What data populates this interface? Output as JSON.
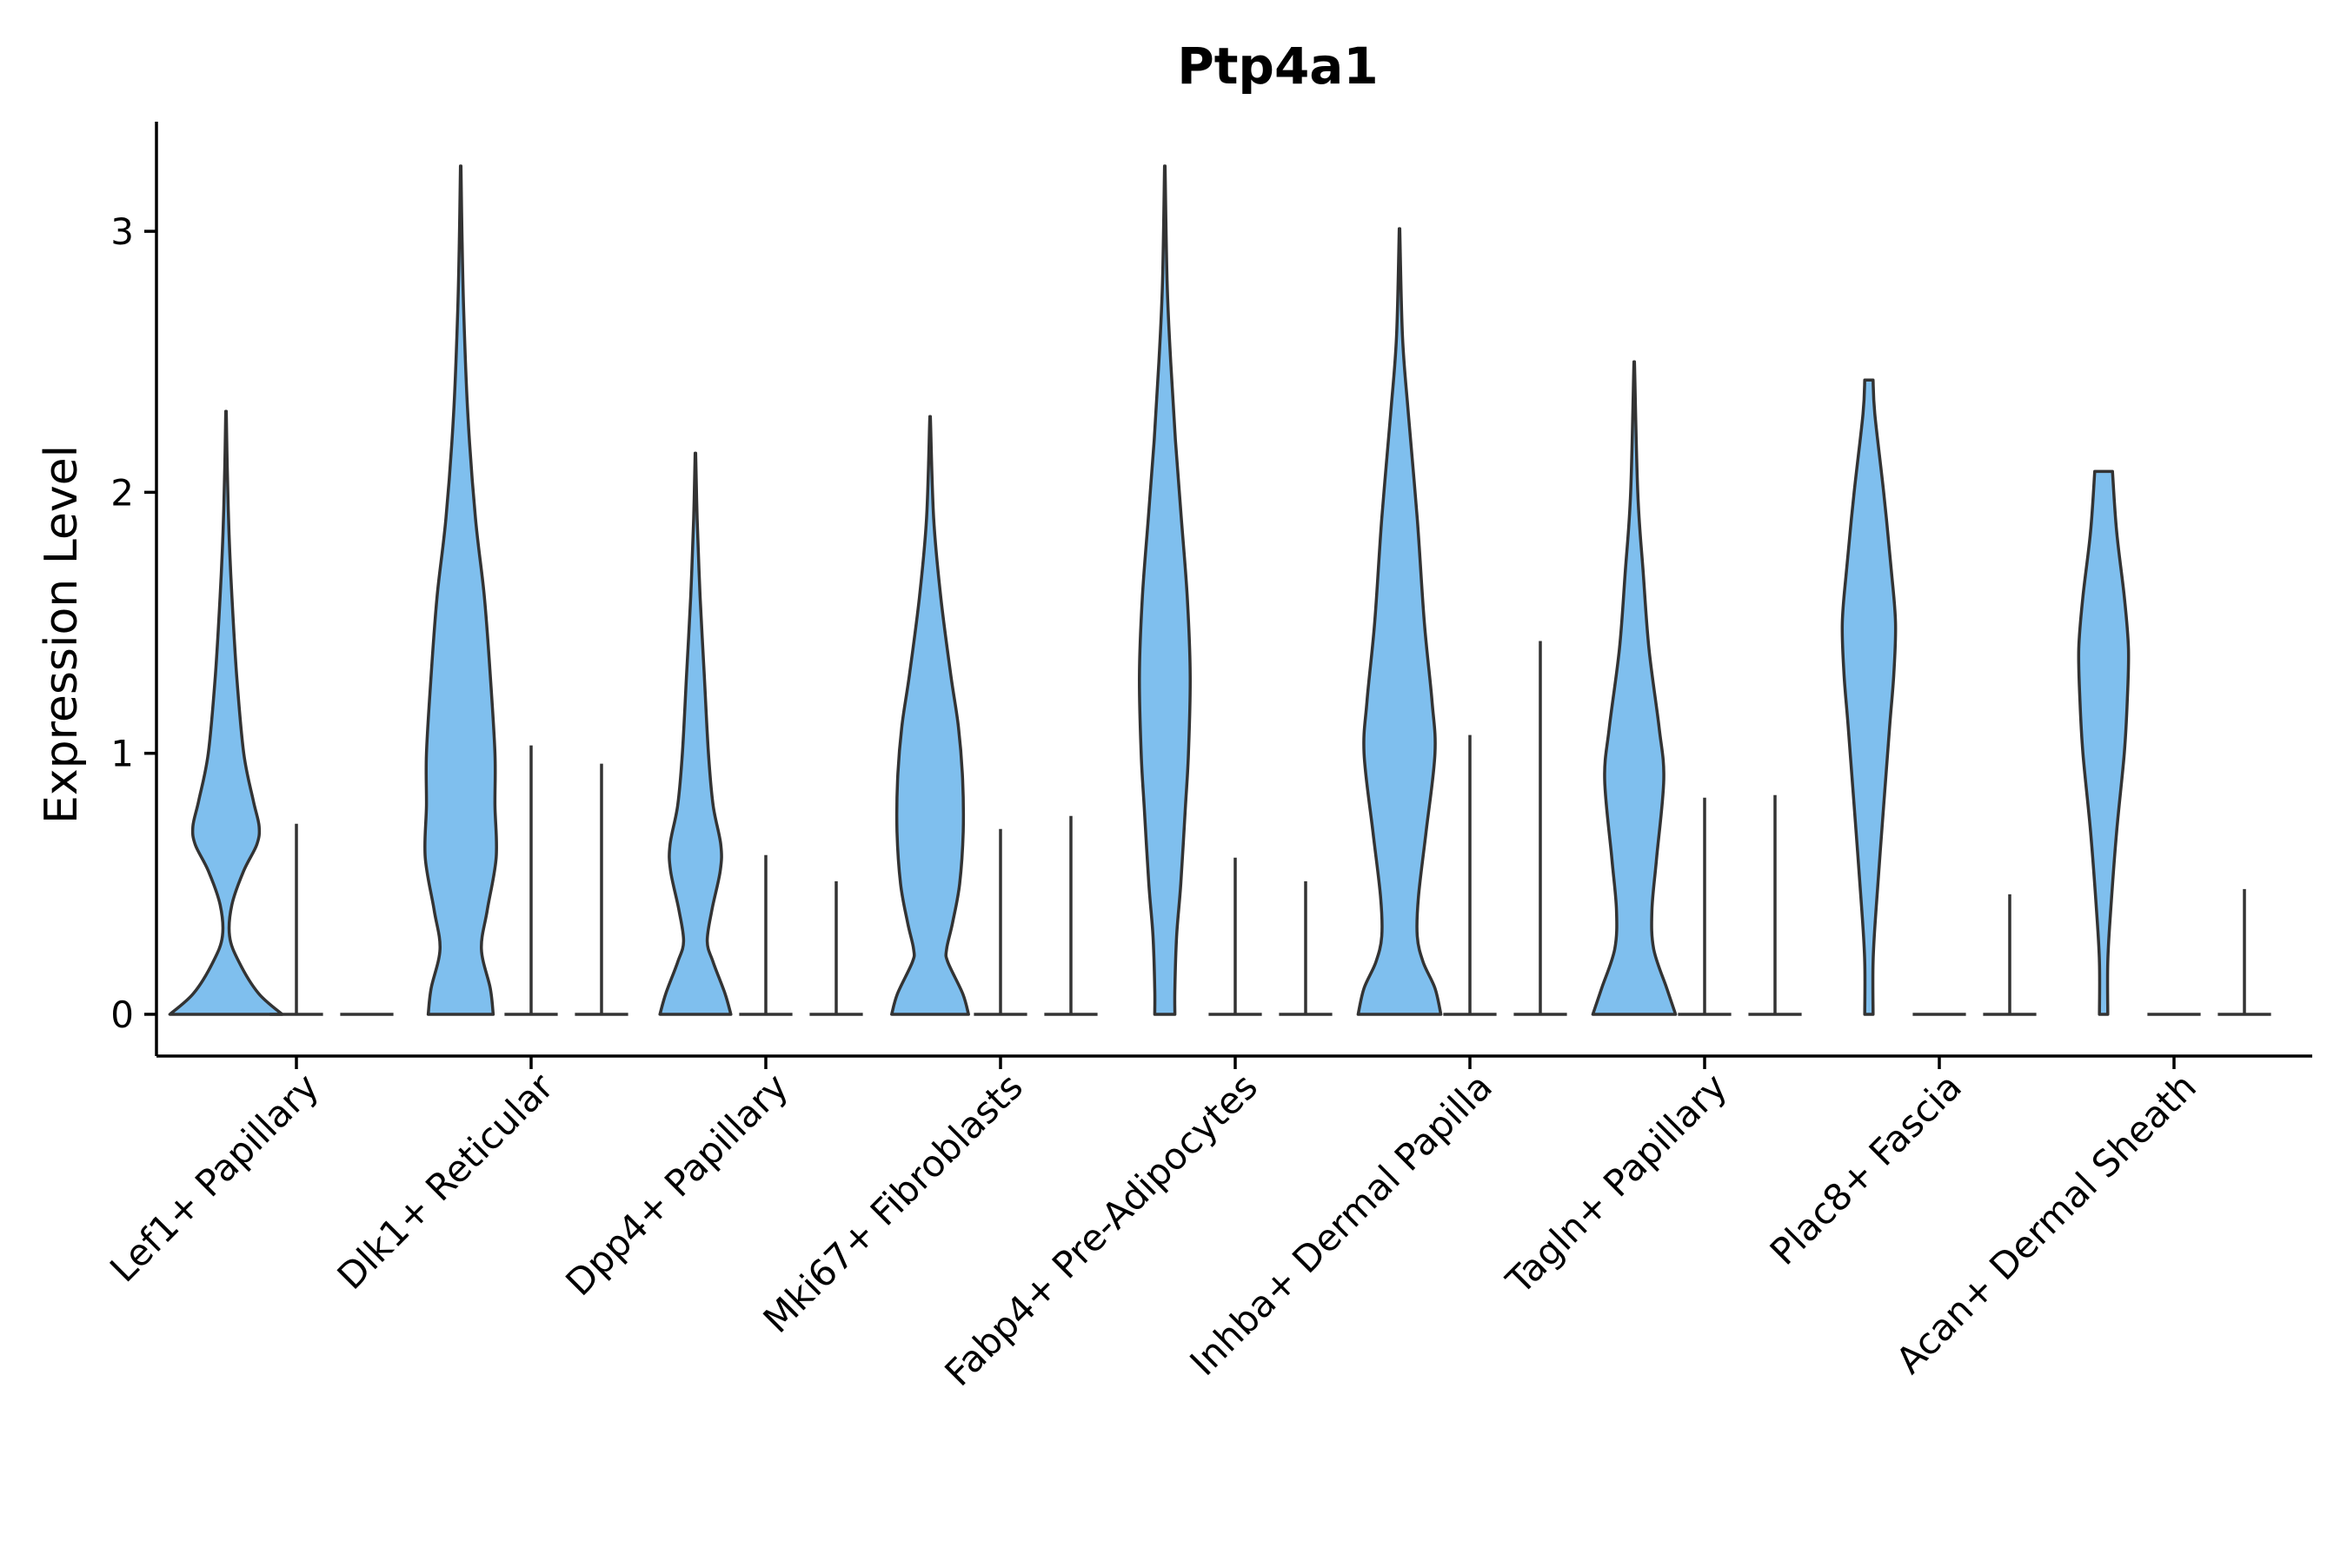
{
  "chart_data": {
    "type": "violin",
    "title": "Ptp4a1",
    "xlabel": "",
    "ylabel": "Expression Level",
    "ylim": [
      -0.16,
      3.42
    ],
    "yticks": [
      0,
      1,
      2,
      3
    ],
    "grid": false,
    "legend": "none",
    "fill_color": "#7fbfee",
    "stroke_color": "#333333",
    "categories": [
      "Lef1+ Papillary",
      "Dlk1+ Reticular",
      "Dpp4+ Papillary",
      "Mki67+ Fibroblasts",
      "Fabp4+ Pre-Adipocytes",
      "Inhba+ Dermal Papilla",
      "Tagln+ Papillary",
      "Plac8+ Fascia",
      "Acan+ Dermal Sheath"
    ],
    "groups": [
      {
        "category": "Lef1+ Papillary",
        "violins": [
          {
            "filled": true,
            "max": 2.31,
            "profile": [
              [
                0,
                0.95
              ],
              [
                0.08,
                0.55
              ],
              [
                0.2,
                0.22
              ],
              [
                0.3,
                0.06
              ],
              [
                0.42,
                0.1
              ],
              [
                0.55,
                0.3
              ],
              [
                0.65,
                0.52
              ],
              [
                0.72,
                0.56
              ],
              [
                0.82,
                0.46
              ],
              [
                1.0,
                0.3
              ],
              [
                1.3,
                0.18
              ],
              [
                1.6,
                0.1
              ],
              [
                1.85,
                0.05
              ],
              [
                2.1,
                0.02
              ],
              [
                2.31,
                0.005
              ]
            ]
          },
          {
            "filled": false,
            "max": 0.73,
            "width": 0.9
          },
          {
            "filled": false,
            "max": 0.0,
            "width": 0.9
          }
        ]
      },
      {
        "category": "Dlk1+ Reticular",
        "violins": [
          {
            "filled": true,
            "max": 3.25,
            "profile": [
              [
                0,
                0.55
              ],
              [
                0.1,
                0.5
              ],
              [
                0.25,
                0.35
              ],
              [
                0.4,
                0.45
              ],
              [
                0.6,
                0.6
              ],
              [
                0.8,
                0.58
              ],
              [
                1.0,
                0.58
              ],
              [
                1.3,
                0.5
              ],
              [
                1.6,
                0.4
              ],
              [
                1.9,
                0.25
              ],
              [
                2.3,
                0.12
              ],
              [
                2.7,
                0.05
              ],
              [
                3.0,
                0.02
              ],
              [
                3.25,
                0.005
              ]
            ]
          },
          {
            "filled": false,
            "max": 1.03,
            "width": 0.9
          },
          {
            "filled": false,
            "max": 0.96,
            "width": 0.9
          }
        ]
      },
      {
        "category": "Dpp4+ Papillary",
        "violins": [
          {
            "filled": true,
            "max": 2.15,
            "profile": [
              [
                0,
                0.6
              ],
              [
                0.08,
                0.5
              ],
              [
                0.2,
                0.3
              ],
              [
                0.28,
                0.2
              ],
              [
                0.4,
                0.28
              ],
              [
                0.55,
                0.42
              ],
              [
                0.65,
                0.43
              ],
              [
                0.8,
                0.3
              ],
              [
                1.0,
                0.22
              ],
              [
                1.3,
                0.15
              ],
              [
                1.6,
                0.08
              ],
              [
                1.9,
                0.03
              ],
              [
                2.15,
                0.005
              ]
            ]
          },
          {
            "filled": false,
            "max": 0.61,
            "width": 0.9
          },
          {
            "filled": false,
            "max": 0.51,
            "width": 0.9
          }
        ]
      },
      {
        "category": "Mki67+ Fibroblasts",
        "violins": [
          {
            "filled": true,
            "max": 2.29,
            "profile": [
              [
                0,
                0.65
              ],
              [
                0.08,
                0.55
              ],
              [
                0.2,
                0.3
              ],
              [
                0.25,
                0.28
              ],
              [
                0.35,
                0.38
              ],
              [
                0.5,
                0.5
              ],
              [
                0.7,
                0.56
              ],
              [
                0.9,
                0.55
              ],
              [
                1.1,
                0.48
              ],
              [
                1.3,
                0.35
              ],
              [
                1.6,
                0.18
              ],
              [
                1.9,
                0.06
              ],
              [
                2.29,
                0.005
              ]
            ]
          },
          {
            "filled": false,
            "max": 0.71,
            "width": 0.9
          },
          {
            "filled": false,
            "max": 0.76,
            "width": 0.9
          }
        ]
      },
      {
        "category": "Fabp4+ Pre-Adipocytes",
        "violins": [
          {
            "filled": true,
            "max": 3.25,
            "profile": [
              [
                0,
                0.17
              ],
              [
                0.1,
                0.17
              ],
              [
                0.3,
                0.2
              ],
              [
                0.5,
                0.27
              ],
              [
                0.8,
                0.35
              ],
              [
                1.0,
                0.4
              ],
              [
                1.3,
                0.43
              ],
              [
                1.6,
                0.38
              ],
              [
                1.9,
                0.28
              ],
              [
                2.2,
                0.18
              ],
              [
                2.5,
                0.1
              ],
              [
                2.8,
                0.04
              ],
              [
                3.25,
                0.005
              ]
            ]
          },
          {
            "filled": false,
            "max": 0.6,
            "width": 0.9
          },
          {
            "filled": false,
            "max": 0.51,
            "width": 0.9
          }
        ]
      },
      {
        "category": "Inhba+ Dermal Papilla",
        "violins": [
          {
            "filled": true,
            "max": 3.01,
            "profile": [
              [
                0,
                0.7
              ],
              [
                0.1,
                0.6
              ],
              [
                0.2,
                0.4
              ],
              [
                0.3,
                0.3
              ],
              [
                0.45,
                0.32
              ],
              [
                0.7,
                0.45
              ],
              [
                1.0,
                0.6
              ],
              [
                1.2,
                0.55
              ],
              [
                1.5,
                0.42
              ],
              [
                1.9,
                0.3
              ],
              [
                2.3,
                0.15
              ],
              [
                2.6,
                0.05
              ],
              [
                3.01,
                0.005
              ]
            ]
          },
          {
            "filled": false,
            "max": 1.07,
            "width": 0.9
          },
          {
            "filled": false,
            "max": 1.43,
            "width": 0.9
          }
        ]
      },
      {
        "category": "Tagln+ Papillary",
        "violins": [
          {
            "filled": true,
            "max": 2.5,
            "profile": [
              [
                0,
                0.7
              ],
              [
                0.1,
                0.55
              ],
              [
                0.25,
                0.33
              ],
              [
                0.4,
                0.3
              ],
              [
                0.6,
                0.38
              ],
              [
                0.9,
                0.5
              ],
              [
                1.1,
                0.42
              ],
              [
                1.4,
                0.25
              ],
              [
                1.7,
                0.15
              ],
              [
                2.0,
                0.06
              ],
              [
                2.5,
                0.005
              ]
            ]
          },
          {
            "filled": false,
            "max": 0.83,
            "width": 0.9
          },
          {
            "filled": false,
            "max": 0.84,
            "width": 0.9
          }
        ]
      },
      {
        "category": "Plac8+ Fascia",
        "violins": [
          {
            "filled": true,
            "max": 2.43,
            "profile": [
              [
                0,
                0.07
              ],
              [
                0.2,
                0.07
              ],
              [
                0.4,
                0.12
              ],
              [
                0.8,
                0.25
              ],
              [
                1.1,
                0.35
              ],
              [
                1.3,
                0.42
              ],
              [
                1.5,
                0.45
              ],
              [
                1.7,
                0.38
              ],
              [
                2.0,
                0.25
              ],
              [
                2.3,
                0.1
              ],
              [
                2.43,
                0.07
              ]
            ]
          },
          {
            "filled": false,
            "max": 0.0,
            "width": 0.9
          },
          {
            "filled": false,
            "max": 0.46,
            "width": 0.9
          }
        ]
      },
      {
        "category": "Acan+ Dermal Sheath",
        "violins": [
          {
            "filled": true,
            "max": 2.08,
            "profile": [
              [
                0,
                0.07
              ],
              [
                0.2,
                0.07
              ],
              [
                0.4,
                0.12
              ],
              [
                0.7,
                0.22
              ],
              [
                1.0,
                0.35
              ],
              [
                1.2,
                0.4
              ],
              [
                1.4,
                0.42
              ],
              [
                1.6,
                0.35
              ],
              [
                1.85,
                0.22
              ],
              [
                2.08,
                0.15
              ]
            ]
          },
          {
            "filled": false,
            "max": 0.0,
            "width": 0.9
          },
          {
            "filled": false,
            "max": 0.48,
            "width": 0.9
          }
        ]
      }
    ]
  }
}
